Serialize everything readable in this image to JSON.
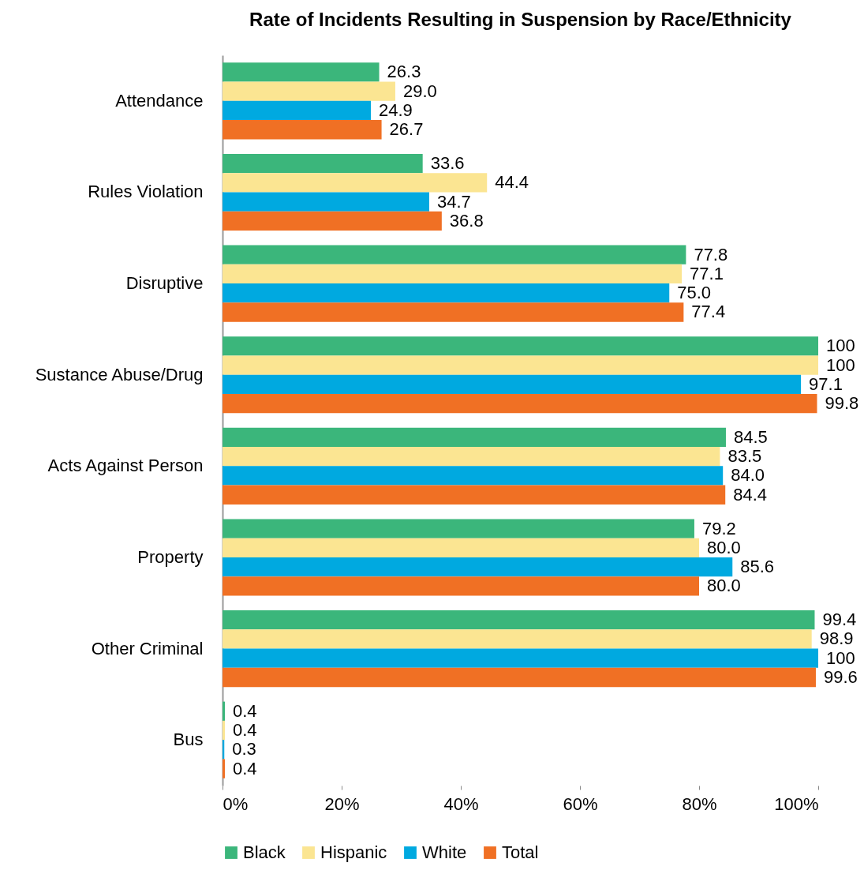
{
  "chart_data": {
    "type": "bar",
    "orientation": "horizontal",
    "title": "Rate of Incidents Resulting in Suspension by Race/Ethnicity",
    "categories": [
      "Attendance",
      "Rules Violation",
      "Disruptive",
      "Sustance Abuse/Drug",
      "Acts Against Person",
      "Property",
      "Other Criminal",
      "Bus"
    ],
    "series": [
      {
        "name": "Black",
        "color": "#3bb67b",
        "values": [
          26.3,
          33.6,
          77.8,
          100,
          84.5,
          79.2,
          99.4,
          0.4
        ],
        "value_labels": [
          "26.3",
          "33.6",
          "77.8",
          "100",
          "84.5",
          "79.2",
          "99.4",
          "0.4"
        ]
      },
      {
        "name": "Hispanic",
        "color": "#fbe592",
        "values": [
          29.0,
          44.4,
          77.1,
          100,
          83.5,
          80.0,
          98.9,
          0.4
        ],
        "value_labels": [
          "29.0",
          "44.4",
          "77.1",
          "100",
          "83.5",
          "80.0",
          "98.9",
          "0.4"
        ]
      },
      {
        "name": "White",
        "color": "#00a9e0",
        "values": [
          24.9,
          34.7,
          75.0,
          97.1,
          84.0,
          85.6,
          100,
          0.3
        ],
        "value_labels": [
          "24.9",
          "34.7",
          "75.0",
          "97.1",
          "84.0",
          "85.6",
          "100",
          "0.3"
        ]
      },
      {
        "name": "Total",
        "color": "#f07024",
        "values": [
          26.7,
          36.8,
          77.4,
          99.8,
          84.4,
          80.0,
          99.6,
          0.4
        ],
        "value_labels": [
          "26.7",
          "36.8",
          "77.4",
          "99.8",
          "84.4",
          "80.0",
          "99.6",
          "0.4"
        ]
      }
    ],
    "xlim": [
      0,
      100
    ],
    "xticks": [
      {
        "value": 0,
        "label": "0%"
      },
      {
        "value": 20,
        "label": "20%"
      },
      {
        "value": 40,
        "label": "40%"
      },
      {
        "value": 60,
        "label": "60%"
      },
      {
        "value": 80,
        "label": "80%"
      },
      {
        "value": 100,
        "label": "100%"
      }
    ],
    "legend": "bottom",
    "grid": false
  }
}
